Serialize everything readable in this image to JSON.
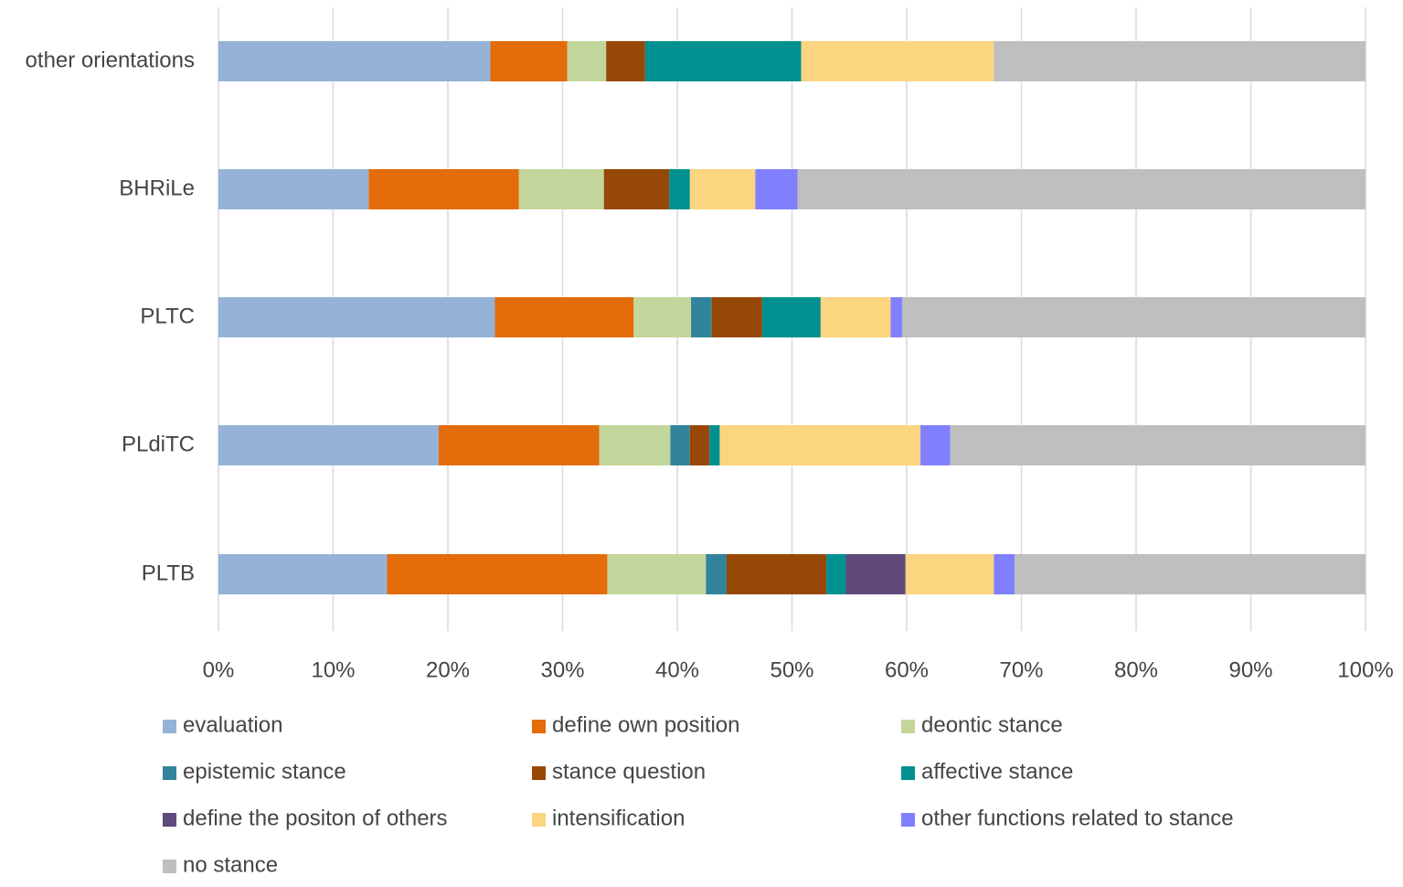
{
  "chart_data": {
    "type": "stacked-bar-horizontal",
    "categories": [
      "other orientations",
      "BHRiLe",
      "PLTC",
      "PLdiTC",
      "PLTB"
    ],
    "series": [
      {
        "name": "evaluation",
        "color": "#95b3d7",
        "values": [
          23.7,
          13.1,
          24.1,
          19.2,
          14.7
        ]
      },
      {
        "name": "define own position",
        "color": "#e46c0a",
        "values": [
          6.7,
          13.1,
          12.1,
          14.0,
          19.2
        ]
      },
      {
        "name": "deontic stance",
        "color": "#c3d69b",
        "values": [
          3.4,
          7.4,
          5.0,
          6.2,
          8.6
        ]
      },
      {
        "name": "epistemic stance",
        "color": "#31849b",
        "values": [
          0,
          0,
          1.8,
          1.7,
          1.8
        ]
      },
      {
        "name": "stance question",
        "color": "#974806",
        "values": [
          3.4,
          5.7,
          4.4,
          1.7,
          8.7
        ]
      },
      {
        "name": "affective stance",
        "color": "#009090",
        "values": [
          13.6,
          1.8,
          5.1,
          0.9,
          1.7
        ]
      },
      {
        "name": "define the positon of others",
        "color": "#604a7b",
        "values": [
          0,
          0,
          0,
          0,
          5.2
        ]
      },
      {
        "name": "intensification",
        "color": "#fcd581",
        "values": [
          16.8,
          5.7,
          6.1,
          17.5,
          7.7
        ]
      },
      {
        "name": "other functions related to stance",
        "color": "#8080ff",
        "values": [
          0,
          3.7,
          1.0,
          2.6,
          1.8
        ]
      },
      {
        "name": "no stance",
        "color": "#bfbfbf",
        "values": [
          32.4,
          49.5,
          40.4,
          36.2,
          30.6
        ]
      }
    ],
    "xlim": [
      0,
      100
    ],
    "xticks": [
      {
        "value": 0,
        "label": "0%"
      },
      {
        "value": 10,
        "label": "10%"
      },
      {
        "value": 20,
        "label": "20%"
      },
      {
        "value": 30,
        "label": "30%"
      },
      {
        "value": 40,
        "label": "40%"
      },
      {
        "value": 50,
        "label": "50%"
      },
      {
        "value": 60,
        "label": "60%"
      },
      {
        "value": 70,
        "label": "70%"
      },
      {
        "value": 80,
        "label": "80%"
      },
      {
        "value": 90,
        "label": "90%"
      },
      {
        "value": 100,
        "label": "100%"
      }
    ],
    "grid": true
  }
}
